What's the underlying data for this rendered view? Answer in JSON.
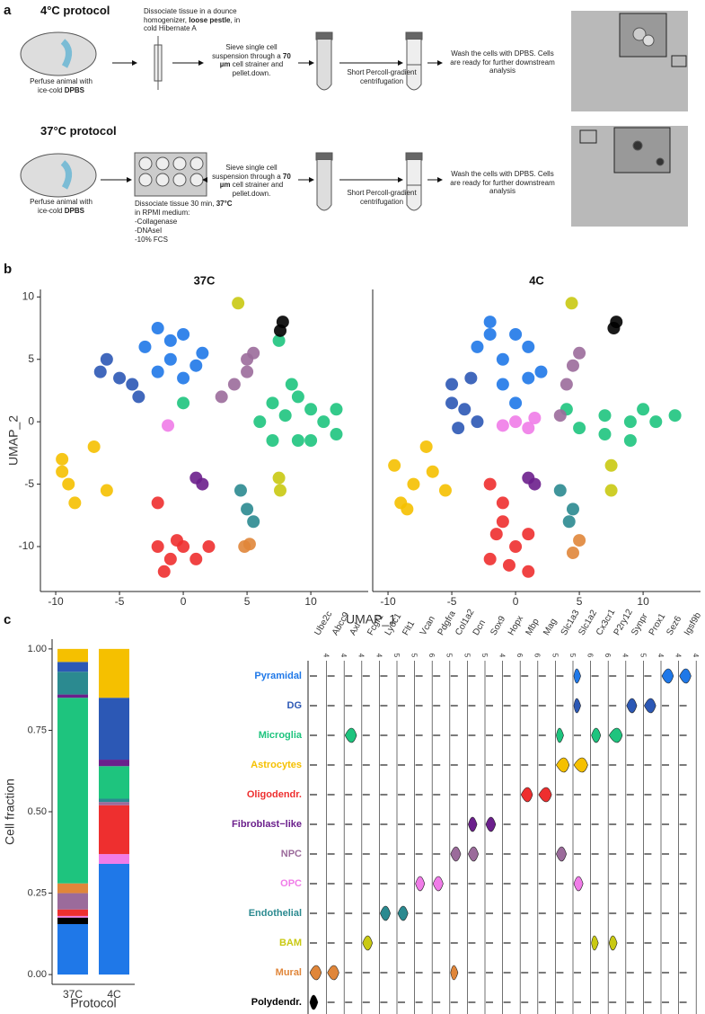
{
  "panel_labels": [
    "a",
    "b",
    "c"
  ],
  "protocol_diagram": {
    "rows": [
      {
        "title": "4°C protocol",
        "perfuse": [
          {
            "text": "Perfuse animal with ice-cold "
          },
          {
            "text": "DPBS",
            "bold": true
          }
        ],
        "dissociate": [
          {
            "text": "Dissociate tissue in a dounce homogenizer, "
          },
          {
            "text": "loose pestle",
            "bold": true
          },
          {
            "text": ", in cold Hibernate A"
          }
        ],
        "reagents": [],
        "sieve": [
          {
            "text": "Sieve single cell suspension through a "
          },
          {
            "text": "70 µm",
            "bold": true
          },
          {
            "text": " cell strainer and pellet.down."
          }
        ],
        "centrifuge": "Short Percoll-gradient centrifugation",
        "wash": "Wash the cells with DPBS. Cells are ready for further downstream analysis"
      },
      {
        "title": "37°C protocol",
        "perfuse": [
          {
            "text": "Perfuse animal with ice-cold "
          },
          {
            "text": "DPBS",
            "bold": true
          }
        ],
        "dissociate": [
          {
            "text": "Dissociate tissue 30 min, "
          },
          {
            "text": "37°C",
            "bold": true
          },
          {
            "text": " in RPMI medium:"
          }
        ],
        "reagents": [
          "-Collagenase",
          "-DNAseI",
          "-10% FCS"
        ],
        "sieve": [
          {
            "text": "Sieve single cell suspension through a "
          },
          {
            "text": "70 µm",
            "bold": true
          },
          {
            "text": " cell strainer and pellet.down."
          }
        ],
        "centrifuge": "Short Percoll-gradient centrifugation",
        "wash": "Wash the cells with DPBS. Cells are ready for further downstream analysis"
      }
    ]
  },
  "chart_data": [
    {
      "type": "scatter",
      "title": "37C",
      "x_label": "UMAP_1",
      "y_label": "UMAP_2",
      "xlim": [
        -11.2,
        14.5
      ],
      "ylim": [
        -13.6,
        10.6
      ],
      "xticks": [
        -10,
        -5,
        0,
        5,
        10
      ],
      "yticks": [
        -10,
        -5,
        0,
        5,
        10
      ],
      "series": [
        {
          "color": "#1f78e8",
          "x": [
            -2,
            0,
            1.5,
            -1,
            -2,
            0,
            1,
            -3,
            -1
          ],
          "y": [
            7.5,
            7,
            5.5,
            5,
            4,
            3.5,
            4.5,
            6,
            6.5
          ]
        },
        {
          "color": "#2c58b5",
          "x": [
            -6,
            -5,
            -4,
            -3.5,
            -6.5
          ],
          "y": [
            5,
            3.5,
            3,
            2,
            4
          ]
        },
        {
          "color": "#1ec47e",
          "x": [
            6,
            7,
            9,
            10,
            11,
            12,
            9,
            7,
            8,
            10,
            12,
            8.5,
            7.5,
            0
          ],
          "y": [
            0,
            1.5,
            2,
            1,
            0,
            -1,
            -1.5,
            -1.5,
            0.5,
            -1.5,
            1,
            3,
            6.5,
            1.5
          ]
        },
        {
          "color": "#f5c000",
          "x": [
            -9.5,
            -9,
            -8.5,
            -9.5,
            -7,
            -6
          ],
          "y": [
            -4,
            -5,
            -6.5,
            -3,
            -2,
            -5.5
          ]
        },
        {
          "color": "#ee2f2f",
          "x": [
            -2,
            -1,
            0,
            -1.5,
            -0.5,
            1,
            -2,
            2
          ],
          "y": [
            -10,
            -11,
            -10,
            -12,
            -9.5,
            -11,
            -6.5,
            -10
          ]
        },
        {
          "color": "#6b1f8c",
          "x": [
            1,
            1.5
          ],
          "y": [
            -4.5,
            -5
          ]
        },
        {
          "color": "#9b6b9b",
          "x": [
            4,
            5,
            5.5,
            3,
            5
          ],
          "y": [
            3,
            4,
            5.5,
            2,
            5
          ]
        },
        {
          "color": "#f07ce8",
          "x": [
            -1.2
          ],
          "y": [
            -0.3
          ]
        },
        {
          "color": "#2b8a90",
          "x": [
            4.5,
            5,
            5.5
          ],
          "y": [
            -5.5,
            -7,
            -8
          ]
        },
        {
          "color": "#c9c912",
          "x": [
            7.5,
            7.6,
            4.3
          ],
          "y": [
            -4.5,
            -5.5,
            9.5
          ]
        },
        {
          "color": "#e0863a",
          "x": [
            4.8,
            5.2
          ],
          "y": [
            -10,
            -9.8
          ]
        },
        {
          "color": "#000000",
          "x": [
            7.8,
            7.6
          ],
          "y": [
            8,
            7.3
          ]
        }
      ]
    },
    {
      "type": "scatter",
      "title": "4C",
      "xlim": [
        -11.2,
        14.5
      ],
      "ylim": [
        -13.6,
        10.6
      ],
      "xticks": [
        -10,
        -5,
        0,
        5,
        10
      ],
      "series": [
        {
          "color": "#1f78e8",
          "x": [
            -2,
            0,
            1,
            -1,
            -3,
            -1,
            0,
            1,
            -2,
            2
          ],
          "y": [
            8,
            7,
            6,
            5,
            6,
            3,
            1.5,
            3.5,
            7,
            4
          ]
        },
        {
          "color": "#2c58b5",
          "x": [
            -5,
            -4,
            -3,
            -5,
            -3.5,
            -4.5
          ],
          "y": [
            3,
            1,
            0,
            1.5,
            3.5,
            -0.5
          ]
        },
        {
          "color": "#1ec47e",
          "x": [
            5,
            7,
            9,
            11,
            12.5,
            9,
            7,
            4,
            10
          ],
          "y": [
            -0.5,
            0.5,
            0,
            0,
            0.5,
            -1.5,
            -1,
            1,
            1
          ]
        },
        {
          "color": "#f5c000",
          "x": [
            -9.5,
            -9,
            -8,
            -7,
            -6.5,
            -5.5,
            -8.5
          ],
          "y": [
            -3.5,
            -6.5,
            -5,
            -2,
            -4,
            -5.5,
            -7
          ]
        },
        {
          "color": "#ee2f2f",
          "x": [
            -2,
            -1,
            -1.5,
            0,
            -0.5,
            1,
            -2,
            1,
            -1
          ],
          "y": [
            -5,
            -6.5,
            -9,
            -10,
            -11.5,
            -12,
            -11,
            -9,
            -8
          ]
        },
        {
          "color": "#6b1f8c",
          "x": [
            1,
            1.5
          ],
          "y": [
            -4.5,
            -5
          ]
        },
        {
          "color": "#9b6b9b",
          "x": [
            3.5,
            4,
            4.5,
            5
          ],
          "y": [
            0.5,
            3,
            4.5,
            5.5
          ]
        },
        {
          "color": "#f07ce8",
          "x": [
            0,
            -1,
            1,
            1.5
          ],
          "y": [
            0,
            -0.3,
            -0.5,
            0.3
          ]
        },
        {
          "color": "#2b8a90",
          "x": [
            3.5,
            4.5,
            4.2
          ],
          "y": [
            -5.5,
            -7,
            -8
          ]
        },
        {
          "color": "#c9c912",
          "x": [
            7.5,
            7.5,
            4.4
          ],
          "y": [
            -3.5,
            -5.5,
            9.5
          ]
        },
        {
          "color": "#e0863a",
          "x": [
            5,
            4.5
          ],
          "y": [
            -9.5,
            -10.5
          ]
        },
        {
          "color": "#000000",
          "x": [
            7.9,
            7.7
          ],
          "y": [
            8,
            7.5
          ]
        }
      ]
    },
    {
      "type": "stacked_bar",
      "x_label": "Protocol",
      "y_label": "Cell fraction",
      "categories": [
        "37C",
        "4C"
      ],
      "ylim": [
        -0.03,
        1.03
      ],
      "yticks": [
        {
          "value": 0,
          "label": "0.00"
        },
        {
          "value": 0.25,
          "label": "0.25"
        },
        {
          "value": 0.5,
          "label": "0.50"
        },
        {
          "value": 0.75,
          "label": "0.75"
        },
        {
          "value": 1,
          "label": "1.00"
        }
      ],
      "series": [
        {
          "color": "#1f78e8",
          "values": [
            0.155,
            0.34
          ]
        },
        {
          "color": "#000000",
          "values": [
            0.02,
            0
          ]
        },
        {
          "color": "#f07ce8",
          "values": [
            0.005,
            0.03
          ]
        },
        {
          "color": "#ee2f2f",
          "values": [
            0.02,
            0.15
          ]
        },
        {
          "color": "#9b6b9b",
          "values": [
            0.05,
            0.01
          ]
        },
        {
          "color": "#e0863a",
          "values": [
            0.03,
            0
          ]
        },
        {
          "color": "#2b8a90",
          "values": [
            0,
            0.01
          ]
        },
        {
          "color": "#1ec47e",
          "values": [
            0.57,
            0.1
          ]
        },
        {
          "color": "#6b1f8c",
          "values": [
            0.01,
            0.02
          ]
        },
        {
          "color": "#2b8a90",
          "values": [
            0.07,
            0
          ]
        },
        {
          "color": "#2c58b5",
          "values": [
            0.03,
            0.19
          ]
        },
        {
          "color": "#f5c000",
          "values": [
            0.04,
            0.15
          ]
        }
      ]
    },
    {
      "type": "violin",
      "rows": [
        "Pyramidal",
        "DG",
        "Microglia",
        "Astrocytes",
        "Oligodendr.",
        "Fibroblast−like",
        "NPC",
        "OPC",
        "Endothelial",
        "BAM",
        "Mural",
        "Polydendr."
      ],
      "row_colors": [
        "#1f78e8",
        "#2c58b5",
        "#1ec47e",
        "#f5c000",
        "#ee2f2f",
        "#6b1f8c",
        "#9b6b9b",
        "#f07ce8",
        "#2b8a90",
        "#c9c912",
        "#e0863a",
        "#000000"
      ],
      "genes": [
        "Ube2c",
        "Abcc9",
        "Axl",
        "Fcgr1",
        "Ly6c1",
        "Flt1",
        "Vcan",
        "Pdgfra",
        "Col1a2",
        "Dcn",
        "Sox9",
        "Hopx",
        "Mbp",
        "Mag",
        "Slc1a3",
        "Slc1a2",
        "Cx3cr1",
        "P2ry12",
        "Synpr",
        "Prox1",
        "Sez6",
        "Igsf9b"
      ],
      "gene_max": [
        4,
        4,
        4,
        4,
        5,
        5,
        6,
        5,
        5,
        5,
        4,
        6,
        6,
        5,
        5,
        6,
        6,
        4,
        5,
        4,
        4,
        4
      ],
      "values": [
        [
          0,
          0,
          0,
          0,
          0,
          0,
          0,
          0,
          0,
          0,
          0,
          0,
          0,
          0,
          0,
          1,
          0,
          0,
          0,
          0,
          2,
          2
        ],
        [
          0,
          0,
          0,
          0,
          0,
          0,
          0,
          0,
          0,
          0,
          0,
          0,
          0,
          0,
          0,
          1,
          0,
          0,
          2,
          2,
          0,
          0
        ],
        [
          0,
          0,
          2,
          0,
          0,
          0,
          0,
          0,
          0,
          0,
          0,
          0,
          0,
          0,
          1,
          0,
          2,
          2.5,
          0,
          0,
          0,
          0
        ],
        [
          0,
          0,
          0,
          0,
          0,
          0,
          0,
          0,
          0,
          0,
          0,
          0,
          0,
          0,
          3,
          4,
          0,
          0,
          0,
          0,
          0,
          0
        ],
        [
          0,
          0,
          0,
          0,
          0,
          0,
          0,
          0,
          0,
          0,
          0,
          0,
          3,
          3,
          0,
          0,
          0,
          0,
          0,
          0,
          0,
          0
        ],
        [
          0,
          0,
          0,
          0,
          0,
          0,
          0,
          0,
          0,
          1.5,
          1.5,
          0,
          0,
          0,
          0,
          0,
          0,
          0,
          0,
          0,
          0,
          0
        ],
        [
          0,
          0,
          0,
          0,
          0,
          0,
          0,
          0,
          2,
          2,
          0,
          0,
          0,
          0,
          2,
          0,
          0,
          0,
          0,
          0,
          0,
          0
        ],
        [
          0,
          0,
          0,
          0,
          0,
          0,
          2,
          2,
          0,
          0,
          0,
          0,
          0,
          0,
          0,
          2,
          0,
          0,
          0,
          0,
          0,
          0
        ],
        [
          0,
          0,
          0,
          0,
          2,
          2,
          0,
          0,
          0,
          0,
          0,
          0,
          0,
          0,
          0,
          0,
          0,
          0,
          0,
          0,
          0,
          0
        ],
        [
          0,
          0,
          0,
          1.5,
          0,
          0,
          0,
          0,
          0,
          0,
          0,
          0,
          0,
          0,
          0,
          0,
          1,
          1,
          0,
          0,
          0,
          0
        ],
        [
          2,
          2,
          0,
          0,
          0,
          0,
          0,
          0,
          1,
          0,
          0,
          0,
          0,
          0,
          0,
          0,
          0,
          0,
          0,
          0,
          0,
          0
        ],
        [
          1,
          0,
          0,
          0,
          0,
          0,
          0,
          0,
          0,
          0,
          0,
          0,
          0,
          0,
          0,
          0,
          0,
          0,
          0,
          0,
          0,
          0
        ]
      ]
    }
  ]
}
